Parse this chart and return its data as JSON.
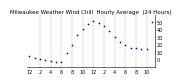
{
  "title": "Milwaukee Weather Wind Chill  Hourly Average  (24 Hours)",
  "hours": [
    0,
    1,
    2,
    3,
    4,
    5,
    6,
    7,
    8,
    9,
    10,
    11,
    12,
    13,
    14,
    15,
    16,
    17,
    18,
    19,
    20,
    21,
    22,
    23
  ],
  "wind_chill": [
    4,
    2,
    1,
    -1,
    -2,
    -3,
    -4,
    8,
    20,
    33,
    41,
    47,
    51,
    49,
    45,
    38,
    30,
    24,
    19,
    16,
    15,
    14,
    14,
    50
  ],
  "dot_color": "#0000cc",
  "bg_color": "#ffffff",
  "grid_color": "#999999",
  "ylim": [
    -10,
    60
  ],
  "yticks": [
    0,
    10,
    20,
    30,
    40,
    50
  ],
  "ytick_labels": [
    "0",
    "10",
    "20",
    "30",
    "40",
    "50"
  ],
  "xtick_positions": [
    0,
    2,
    4,
    6,
    8,
    10,
    12,
    14,
    16,
    18,
    20,
    22
  ],
  "xtick_labels": [
    "12",
    "2",
    "4",
    "6",
    "8",
    "10",
    "12",
    "2",
    "4",
    "6",
    "8",
    "10"
  ],
  "vgrid_positions": [
    2,
    4,
    6,
    8,
    10,
    12,
    14,
    16,
    18,
    20,
    22
  ],
  "title_fontsize": 4,
  "tick_fontsize": 3.5,
  "dot_size": 1.5
}
